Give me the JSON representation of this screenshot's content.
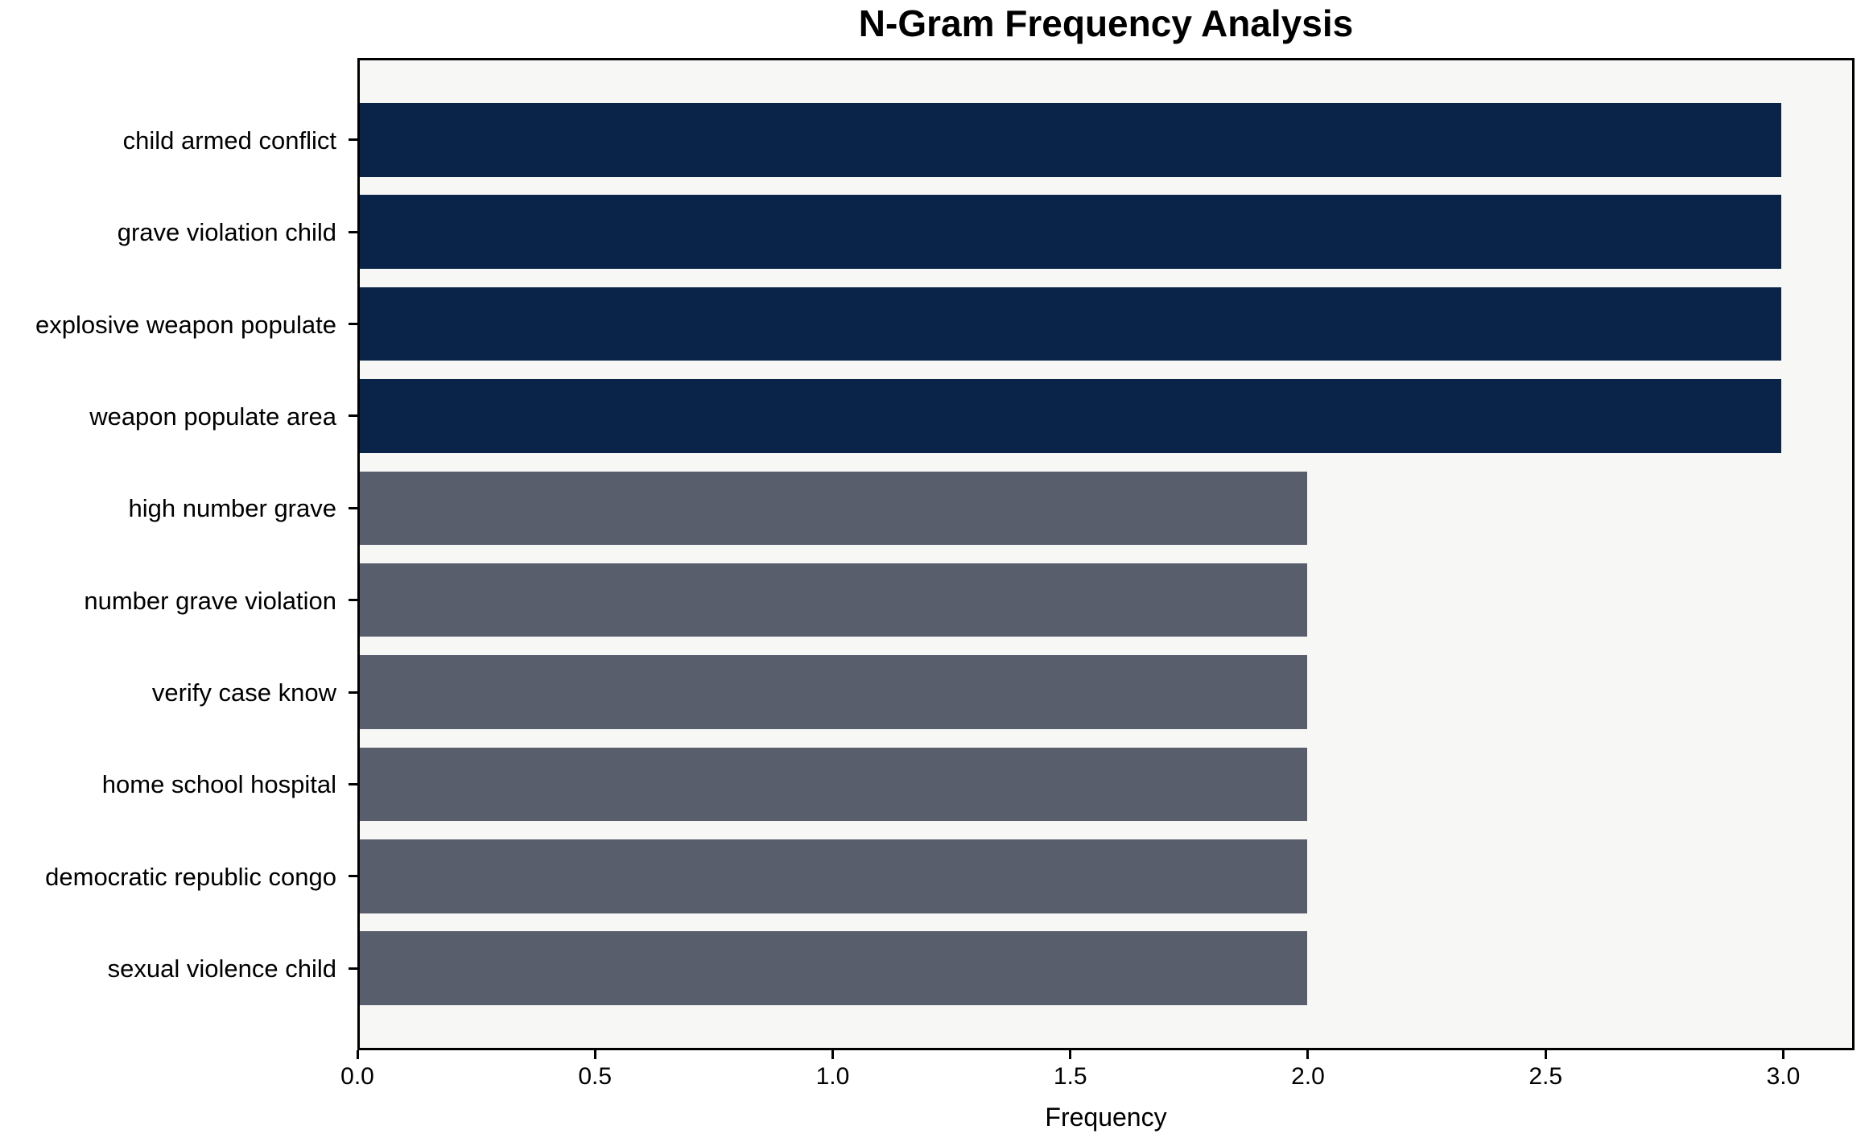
{
  "chart_data": {
    "type": "bar",
    "orientation": "horizontal",
    "title": "N-Gram Frequency Analysis",
    "xlabel": "Frequency",
    "ylabel": "",
    "categories": [
      "child armed conflict",
      "grave violation child",
      "explosive weapon populate",
      "weapon populate area",
      "high number grave",
      "number grave violation",
      "verify case know",
      "home school hospital",
      "democratic republic congo",
      "sexual violence child"
    ],
    "values": [
      3,
      3,
      3,
      3,
      2,
      2,
      2,
      2,
      2,
      2
    ],
    "bar_colors": [
      "#0a2348",
      "#0a2348",
      "#0a2348",
      "#0a2348",
      "#585e6c",
      "#585e6c",
      "#585e6c",
      "#585e6c",
      "#585e6c",
      "#585e6c"
    ],
    "xlim": [
      0,
      3.15
    ],
    "xticks": [
      {
        "value": 0.0,
        "label": "0.0"
      },
      {
        "value": 0.5,
        "label": "0.5"
      },
      {
        "value": 1.0,
        "label": "1.0"
      },
      {
        "value": 1.5,
        "label": "1.5"
      },
      {
        "value": 2.0,
        "label": "2.0"
      },
      {
        "value": 2.5,
        "label": "2.5"
      },
      {
        "value": 3.0,
        "label": "3.0"
      }
    ],
    "grid": false,
    "legend": "none",
    "plot_background": "#f7f7f6",
    "figure_background": "#ffffff",
    "axis_color": "#000000"
  }
}
